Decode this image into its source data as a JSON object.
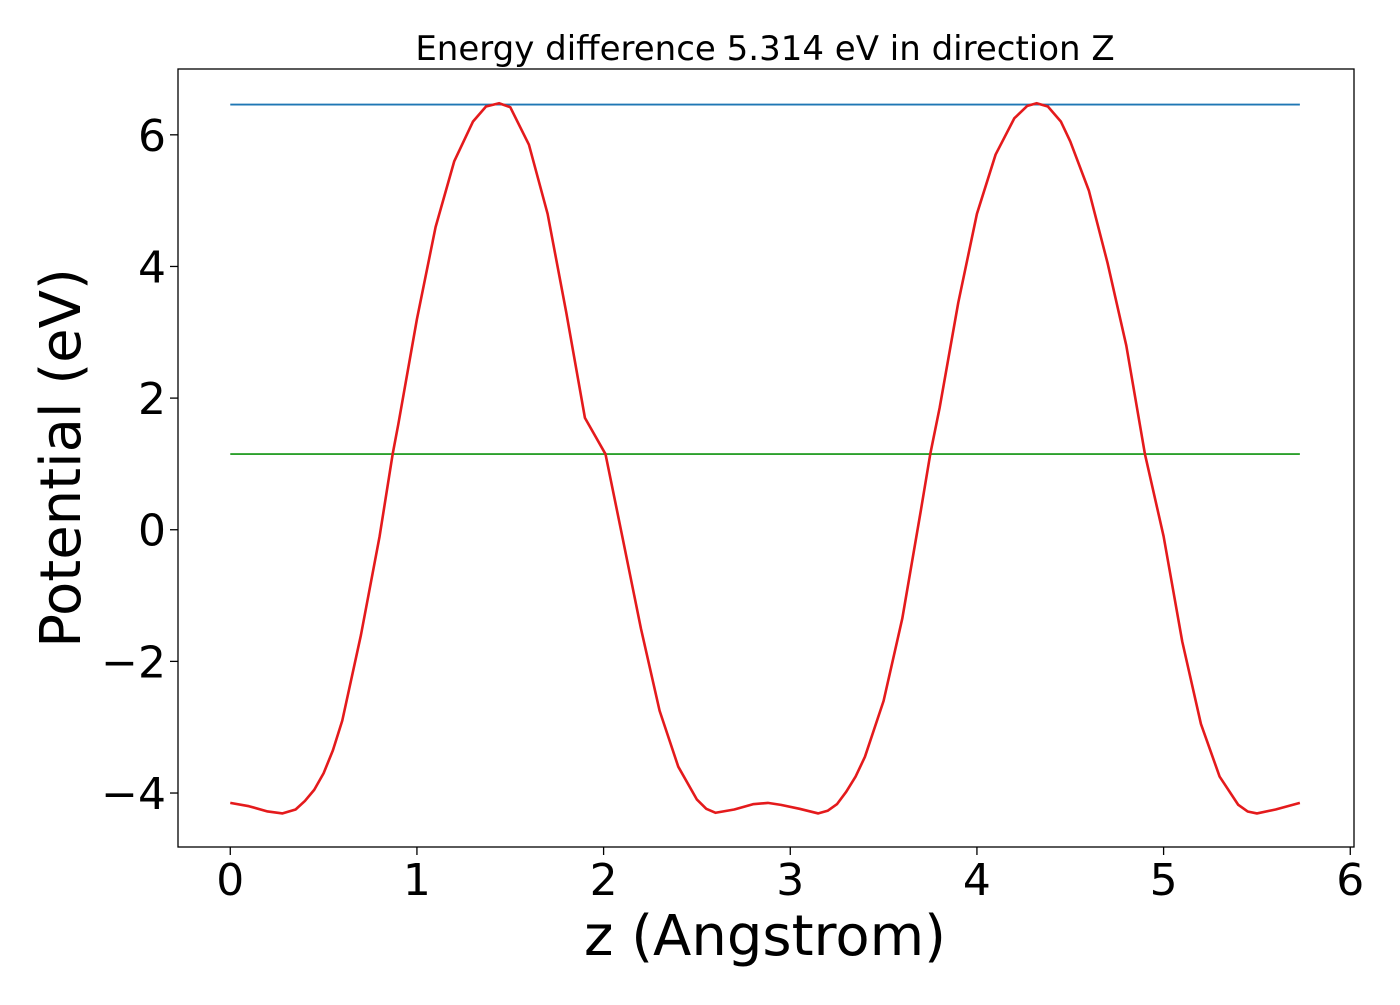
{
  "chart_data": {
    "type": "line",
    "title": "Energy difference 5.314 eV in direction Z",
    "xlabel": "z (Angstrom)",
    "ylabel": "Potential (eV)",
    "xlim": [
      -0.28,
      6.02
    ],
    "ylim": [
      -4.82,
      7.0
    ],
    "xticks": [
      {
        "value": 0,
        "label": "0"
      },
      {
        "value": 1,
        "label": "1"
      },
      {
        "value": 2,
        "label": "2"
      },
      {
        "value": 3,
        "label": "3"
      },
      {
        "value": 4,
        "label": "4"
      },
      {
        "value": 5,
        "label": "5"
      },
      {
        "value": 6,
        "label": "6"
      }
    ],
    "yticks": [
      {
        "value": -4,
        "label": "−4"
      },
      {
        "value": -2,
        "label": "−2"
      },
      {
        "value": 0,
        "label": "0"
      },
      {
        "value": 2,
        "label": "2"
      },
      {
        "value": 4,
        "label": "4"
      },
      {
        "value": 6,
        "label": "6"
      }
    ],
    "grid": false,
    "series": [
      {
        "color": "#1f77b4",
        "x": [
          0,
          5.73
        ],
        "y": [
          6.46,
          6.46
        ]
      },
      {
        "color": "#2ca02c",
        "x": [
          0,
          5.73
        ],
        "y": [
          1.15,
          1.15
        ]
      },
      {
        "color": "#e41a1c",
        "x": [
          0.0,
          0.1,
          0.2,
          0.28,
          0.35,
          0.4,
          0.45,
          0.5,
          0.55,
          0.6,
          0.7,
          0.8,
          0.87,
          0.9,
          1.0,
          1.1,
          1.2,
          1.3,
          1.37,
          1.44,
          1.5,
          1.6,
          1.7,
          1.8,
          1.9,
          2.01,
          2.1,
          2.2,
          2.3,
          2.4,
          2.5,
          2.55,
          2.6,
          2.7,
          2.8,
          2.88,
          2.95,
          3.05,
          3.15,
          3.2,
          3.25,
          3.3,
          3.35,
          3.4,
          3.5,
          3.6,
          3.7,
          3.75,
          3.8,
          3.9,
          4.0,
          4.1,
          4.2,
          4.27,
          4.32,
          4.38,
          4.45,
          4.5,
          4.6,
          4.7,
          4.8,
          4.9,
          5.0,
          5.1,
          5.2,
          5.3,
          5.4,
          5.45,
          5.5,
          5.6,
          5.73
        ],
        "y": [
          -4.15,
          -4.2,
          -4.28,
          -4.31,
          -4.25,
          -4.12,
          -3.95,
          -3.7,
          -3.35,
          -2.9,
          -1.6,
          -0.1,
          1.15,
          1.6,
          3.2,
          4.6,
          5.6,
          6.2,
          6.43,
          6.48,
          6.42,
          5.85,
          4.8,
          3.3,
          1.7,
          1.15,
          -0.1,
          -1.5,
          -2.75,
          -3.6,
          -4.1,
          -4.24,
          -4.3,
          -4.25,
          -4.17,
          -4.15,
          -4.18,
          -4.24,
          -4.31,
          -4.27,
          -4.17,
          -3.98,
          -3.75,
          -3.45,
          -2.6,
          -1.35,
          0.3,
          1.15,
          1.85,
          3.45,
          4.8,
          5.7,
          6.25,
          6.44,
          6.48,
          6.43,
          6.2,
          5.9,
          5.15,
          4.05,
          2.8,
          1.15,
          -0.1,
          -1.7,
          -2.95,
          -3.75,
          -4.18,
          -4.28,
          -4.31,
          -4.25,
          -4.15
        ]
      }
    ]
  }
}
